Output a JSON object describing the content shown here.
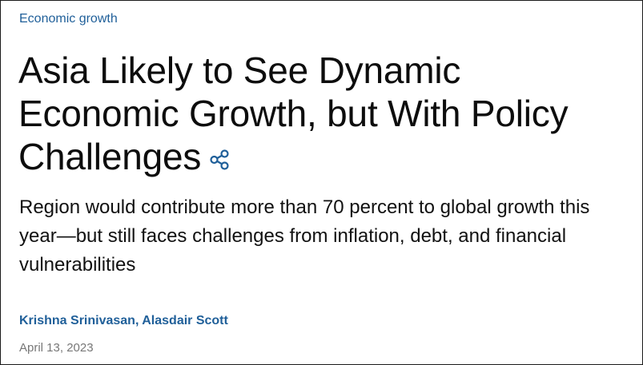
{
  "article": {
    "category": "Economic growth",
    "title": "Asia Likely to See Dynamic Economic Growth, but With Policy Challenges",
    "subtitle": "Region would contribute more than 70 percent to global growth this year—but still faces challenges from inflation, debt, and financial vulnerabilities",
    "authors": [
      "Krishna Srinivasan",
      "Alasdair Scott"
    ],
    "author_separator": ", ",
    "date": "April 13, 2023",
    "share_icon": "share-icon"
  },
  "colors": {
    "link": "#1f5f99",
    "text": "#111111",
    "muted": "#777777"
  }
}
